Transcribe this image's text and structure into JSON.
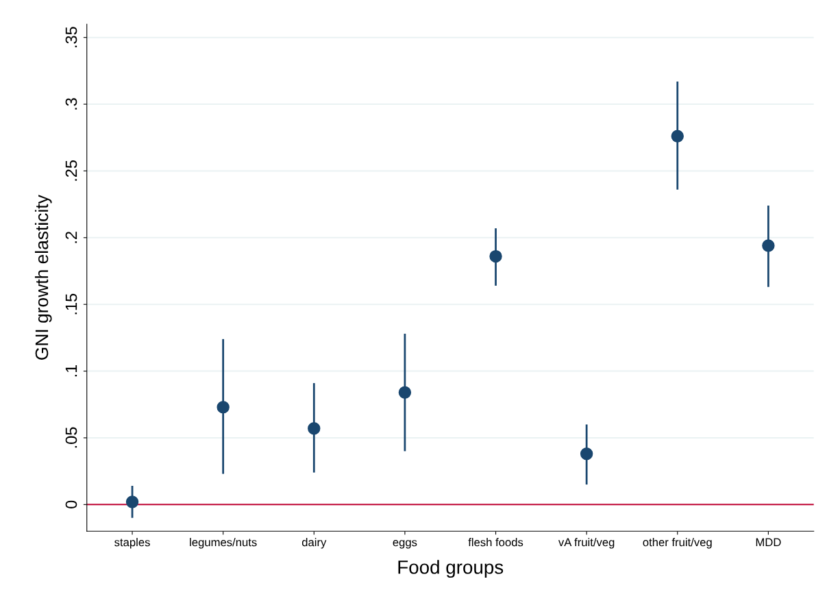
{
  "chart_data": {
    "type": "scatter",
    "xlabel": "Food groups",
    "ylabel": "GNI growth elasticity",
    "categories": [
      "staples",
      "legumes/nuts",
      "dairy",
      "eggs",
      "flesh foods",
      "vA fruit/veg",
      "other fruit/veg",
      "MDD"
    ],
    "series": [
      {
        "color": "#1a476f",
        "values": [
          0.002,
          0.073,
          0.057,
          0.084,
          0.186,
          0.038,
          0.276,
          0.194
        ],
        "errors": [
          [
            -0.01,
            0.014
          ],
          [
            0.023,
            0.124
          ],
          [
            0.024,
            0.091
          ],
          [
            0.04,
            0.128
          ],
          [
            0.164,
            0.207
          ],
          [
            0.015,
            0.06
          ],
          [
            0.236,
            0.317
          ],
          [
            0.163,
            0.224
          ]
        ]
      }
    ],
    "ylim": [
      -0.02,
      0.36
    ],
    "yticks": [
      {
        "value": 0,
        "label": "0"
      },
      {
        "value": 0.05,
        "label": ".05"
      },
      {
        "value": 0.1,
        "label": ".1"
      },
      {
        "value": 0.15,
        "label": ".15"
      },
      {
        "value": 0.2,
        "label": ".2"
      },
      {
        "value": 0.25,
        "label": ".25"
      },
      {
        "value": 0.3,
        "label": ".3"
      },
      {
        "value": 0.35,
        "label": ".35"
      }
    ],
    "ref_lines": [
      {
        "axis": "y",
        "value": 0,
        "color": "#c10534"
      }
    ],
    "grid": "y",
    "marker": "circle",
    "legend": false
  }
}
